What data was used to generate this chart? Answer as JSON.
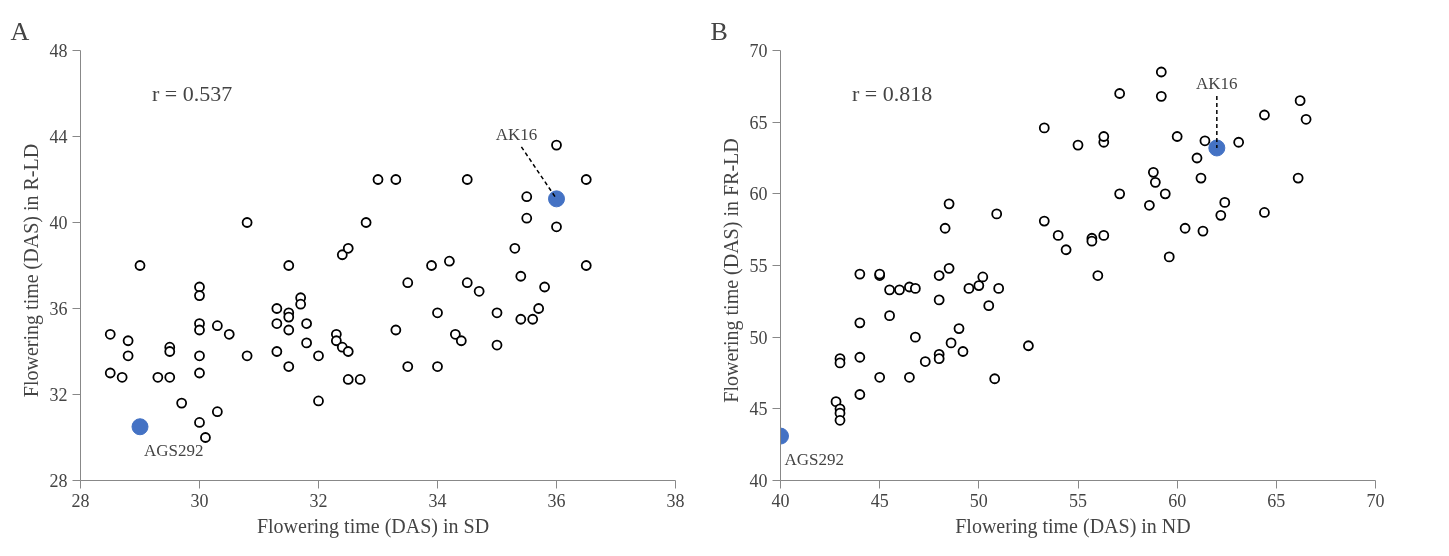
{
  "chart_data": [
    {
      "type": "scatter",
      "title": "A",
      "xlabel": "Flowering  time  (DAS) in SD",
      "ylabel": "Flowering  time  (DAS) in R-LD",
      "marker": "circle",
      "grid": false,
      "xlim": [
        28,
        38
      ],
      "xticks": [
        28,
        30,
        32,
        34,
        36,
        38
      ],
      "ylim": [
        28,
        48
      ],
      "yticks": [
        28,
        32,
        36,
        40,
        44,
        48
      ],
      "annotations": [
        "r = 0.537",
        {
          "text": "AGS292",
          "x": 29.0,
          "y": 30.5
        },
        {
          "text": "AK16",
          "x": 36.0,
          "y": 41.1
        }
      ],
      "series": [
        {
          "color": "#000000",
          "x": [
            28.5,
            28.5,
            28.7,
            28.8,
            28.8,
            29.0,
            29.3,
            29.5,
            29.5,
            29.5,
            29.7,
            30.0,
            30.0,
            30.0,
            30.0,
            30.0,
            30.0,
            30.0,
            30.1,
            30.3,
            30.3,
            30.5,
            30.8,
            30.8,
            31.3,
            31.3,
            31.3,
            31.5,
            31.5,
            31.5,
            31.5,
            31.5,
            31.7,
            31.7,
            31.8,
            31.8,
            32.0,
            32.0,
            32.3,
            32.3,
            32.4,
            32.4,
            32.5,
            32.5,
            32.5,
            32.7,
            32.8,
            33.0,
            33.3,
            33.3,
            33.5,
            33.5,
            33.9,
            34.0,
            34.0,
            34.2,
            34.3,
            34.4,
            34.5,
            34.5,
            34.7,
            35.0,
            35.0,
            35.3,
            35.4,
            35.4,
            35.5,
            35.5,
            35.6,
            35.7,
            35.8,
            36.0,
            36.0,
            36.5,
            36.5
          ],
          "values": [
            34.8,
            33.0,
            32.8,
            34.5,
            33.8,
            38.0,
            32.8,
            34.2,
            34.0,
            32.8,
            31.6,
            37.0,
            36.6,
            35.3,
            35.0,
            33.8,
            33.0,
            30.7,
            30.0,
            31.2,
            35.2,
            34.8,
            40.0,
            33.8,
            36.0,
            35.3,
            34.0,
            38.0,
            35.8,
            35.6,
            35.0,
            33.3,
            36.5,
            36.2,
            35.3,
            34.4,
            33.8,
            31.7,
            34.8,
            34.5,
            34.2,
            38.5,
            38.8,
            34.0,
            32.7,
            32.7,
            40.0,
            42.0,
            42.0,
            35.0,
            37.2,
            33.3,
            38.0,
            35.8,
            33.3,
            38.2,
            34.8,
            34.5,
            42.0,
            37.2,
            36.8,
            35.8,
            34.3,
            38.8,
            37.5,
            35.5,
            41.2,
            40.2,
            35.5,
            36.0,
            37.0,
            43.6,
            39.8,
            42.0,
            38.0
          ]
        },
        {
          "color": "#4472c4",
          "x": [
            29.0,
            36.0
          ],
          "values": [
            30.5,
            41.1
          ]
        }
      ]
    },
    {
      "type": "scatter",
      "title": "B",
      "xlabel": "Flowering  time  (DAS) in ND",
      "ylabel": "Flowering  time  (DAS) in FR-LD",
      "marker": "circle",
      "grid": false,
      "xlim": [
        40,
        70
      ],
      "xticks": [
        40,
        45,
        50,
        55,
        60,
        65,
        70
      ],
      "ylim": [
        40,
        70
      ],
      "yticks": [
        40,
        45,
        50,
        55,
        60,
        65,
        70
      ],
      "annotations": [
        "r = 0.818",
        {
          "text": "AGS292",
          "x": 40,
          "y": 43.1
        },
        {
          "text": "AK16",
          "x": 62,
          "y": 63.2
        }
      ],
      "series": [
        {
          "color": "#000000",
          "x": [
            43,
            43,
            42.8,
            43,
            43,
            43,
            44,
            44,
            44,
            44,
            45,
            45,
            45,
            45.5,
            45.5,
            46,
            46.5,
            46.5,
            46.8,
            46.8,
            47.3,
            48,
            48,
            48,
            48,
            48.3,
            48.5,
            48.5,
            48.6,
            49,
            49.2,
            49.5,
            50,
            50.2,
            50.5,
            50.8,
            50.9,
            51,
            52.5,
            53.3,
            53.3,
            54,
            54.4,
            55,
            55.7,
            55.7,
            56,
            56.3,
            56.3,
            56.3,
            57.1,
            57.1,
            58.6,
            58.8,
            58.9,
            59.2,
            59.2,
            59.4,
            59.6,
            60,
            60.4,
            61,
            61.2,
            61.3,
            61.4,
            62.2,
            62.4,
            63.1,
            64.4,
            64.4,
            66.1,
            66.2,
            66.5
          ],
          "values": [
            48.5,
            48.2,
            45.5,
            45,
            44.7,
            44.2,
            54.4,
            51,
            48.6,
            46,
            54.3,
            54.4,
            47.2,
            53.3,
            51.5,
            53.3,
            53.5,
            47.2,
            53.4,
            50,
            48.3,
            52.6,
            54.3,
            48.8,
            48.5,
            57.6,
            54.8,
            59.3,
            49.6,
            50.6,
            49,
            53.4,
            53.6,
            54.2,
            52.2,
            47.1,
            58.6,
            53.4,
            49.4,
            64.6,
            58.1,
            57.1,
            56.1,
            63.4,
            56.9,
            56.7,
            54.3,
            57.1,
            63.6,
            64,
            67,
            60,
            59.2,
            61.5,
            60.8,
            68.5,
            66.8,
            60,
            55.6,
            64,
            57.6,
            62.5,
            61.1,
            57.4,
            63.7,
            58.5,
            59.4,
            63.6,
            65.5,
            58.7,
            61.1,
            66.5,
            65.2
          ]
        },
        {
          "color": "#4472c4",
          "x": [
            40,
            62
          ],
          "values": [
            43.1,
            63.2
          ]
        }
      ]
    }
  ]
}
